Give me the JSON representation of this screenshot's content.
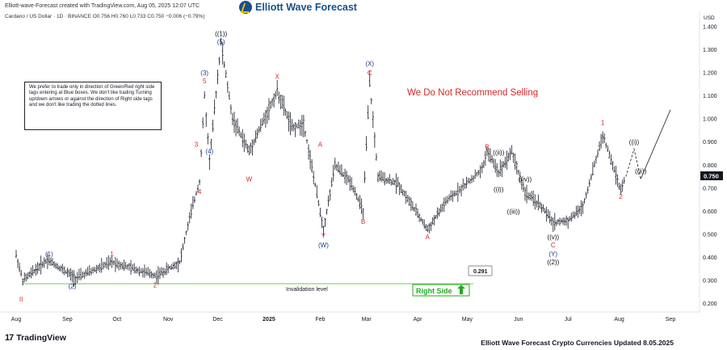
{
  "header": {
    "creator_line": "Elliott-wave-Forecast created with TradingView.com, Aug 05, 2025 12:07 UTC",
    "symbol_line": "Cardano / US Dollar · 1D · BINANCE  O0.756  H0.760  L0.733  C0.750  −0.006 (−0.79%)"
  },
  "brand": {
    "name": "Elliott Wave Forecast",
    "color": "#1a4f8c",
    "accent": "#f2c200"
  },
  "note_text": "We prefer to trade only in direction of Green/Red right side tags entering at Blue boxes. We don't like trading Turning up/down arrows or against the direction of Right side tags and we don't like trading the dotted lines.",
  "headline": {
    "text": "We Do Not Recommend Selling",
    "color": "#d62828"
  },
  "invalidation": {
    "label": "Invalidation level",
    "value": "0.291",
    "color": "#8bd86b"
  },
  "right_side": {
    "label": "Right Side",
    "color": "#22aa22"
  },
  "footer": {
    "tv_brand": "TradingView",
    "title": "Elliott Wave Forecast Crypto Currencies Updated 8.05.2025"
  },
  "chart_data": {
    "type": "candlestick",
    "currency": "USD",
    "last_price": "0.750",
    "ylim": [
      0.18,
      1.42
    ],
    "y_ticks": [
      "1.400",
      "1.300",
      "1.200",
      "1.100",
      "1.000",
      "0.900",
      "0.800",
      "0.700",
      "0.600",
      "0.500",
      "0.400",
      "0.300",
      "0.200"
    ],
    "x_ticks": [
      "Aug",
      "Sep",
      "Oct",
      "Nov",
      "Dec",
      "2025",
      "Feb",
      "Mar",
      "Apr",
      "May",
      "Jun",
      "Jul",
      "Aug",
      "Sep"
    ],
    "price_path": [
      [
        "2024-08-01",
        0.41
      ],
      [
        "2024-08-05",
        0.3
      ],
      [
        "2024-08-20",
        0.39
      ],
      [
        "2024-09-06",
        0.31
      ],
      [
        "2024-09-28",
        0.38
      ],
      [
        "2024-10-25",
        0.32
      ],
      [
        "2024-11-08",
        0.38
      ],
      [
        "2024-11-15",
        0.6
      ],
      [
        "2024-11-20",
        0.73
      ],
      [
        "2024-11-23",
        1.1
      ],
      [
        "2024-11-26",
        0.82
      ],
      [
        "2024-12-03",
        1.33
      ],
      [
        "2024-12-10",
        1.0
      ],
      [
        "2024-12-20",
        0.86
      ],
      [
        "2025-01-06",
        1.12
      ],
      [
        "2025-01-15",
        0.96
      ],
      [
        "2025-01-22",
        0.98
      ],
      [
        "2025-02-03",
        0.52
      ],
      [
        "2025-02-10",
        0.8
      ],
      [
        "2025-02-20",
        0.72
      ],
      [
        "2025-02-27",
        0.6
      ],
      [
        "2025-03-03",
        1.16
      ],
      [
        "2025-03-08",
        0.75
      ],
      [
        "2025-03-20",
        0.72
      ],
      [
        "2025-04-07",
        0.52
      ],
      [
        "2025-04-18",
        0.64
      ],
      [
        "2025-05-10",
        0.78
      ],
      [
        "2025-05-13",
        0.86
      ],
      [
        "2025-05-20",
        0.77
      ],
      [
        "2025-05-28",
        0.86
      ],
      [
        "2025-06-05",
        0.68
      ],
      [
        "2025-06-15",
        0.62
      ],
      [
        "2025-06-22",
        0.55
      ],
      [
        "2025-07-01",
        0.56
      ],
      [
        "2025-07-10",
        0.62
      ],
      [
        "2025-07-17",
        0.8
      ],
      [
        "2025-07-22",
        0.93
      ],
      [
        "2025-07-28",
        0.8
      ],
      [
        "2025-08-02",
        0.69
      ],
      [
        "2025-08-05",
        0.75
      ]
    ],
    "projection": [
      [
        "2025-08-05",
        0.75
      ],
      [
        "2025-08-10",
        0.87
      ],
      [
        "2025-08-14",
        0.74
      ],
      [
        "2025-09-01",
        1.04
      ]
    ],
    "labels": [
      {
        "text": "II",
        "date": "2024-08-04",
        "y": 0.22,
        "color": "#d62828"
      },
      {
        "text": "(1)",
        "date": "2024-08-21",
        "y": 0.415,
        "color": "#1f3a93"
      },
      {
        "text": "(2)",
        "date": "2024-09-04",
        "y": 0.275,
        "color": "#1f3a93"
      },
      {
        "text": "1",
        "date": "2024-09-28",
        "y": 0.415,
        "color": "#d62828"
      },
      {
        "text": "2",
        "date": "2024-10-24",
        "y": 0.28,
        "color": "#d62828"
      },
      {
        "text": "3",
        "date": "2024-11-18",
        "y": 0.89,
        "color": "#d62828"
      },
      {
        "text": "4",
        "date": "2024-11-20",
        "y": 0.685,
        "color": "#d62828"
      },
      {
        "text": "5",
        "date": "2024-11-23",
        "y": 1.165,
        "color": "#d62828"
      },
      {
        "text": "(3)",
        "date": "2024-11-23",
        "y": 1.2,
        "color": "#1f3a93"
      },
      {
        "text": "(4)",
        "date": "2024-11-26",
        "y": 0.86,
        "color": "#1f3a93"
      },
      {
        "text": "((1))",
        "date": "2024-12-03",
        "y": 1.37,
        "color": "#111111"
      },
      {
        "text": "(5)",
        "date": "2024-12-03",
        "y": 1.335,
        "color": "#1f3a93"
      },
      {
        "text": "W",
        "date": "2024-12-20",
        "y": 0.74,
        "color": "#d62828"
      },
      {
        "text": "X",
        "date": "2025-01-06",
        "y": 1.185,
        "color": "#d62828"
      },
      {
        "text": "A",
        "date": "2025-02-01",
        "y": 0.89,
        "color": "#d62828"
      },
      {
        "text": "Y",
        "date": "2025-02-03",
        "y": 0.495,
        "color": "#d62828"
      },
      {
        "text": "(W)",
        "date": "2025-02-03",
        "y": 0.455,
        "color": "#1f3a93"
      },
      {
        "text": "(X)",
        "date": "2025-03-03",
        "y": 1.24,
        "color": "#1f3a93"
      },
      {
        "text": "C",
        "date": "2025-03-03",
        "y": 1.2,
        "color": "#d62828"
      },
      {
        "text": "B",
        "date": "2025-02-27",
        "y": 0.555,
        "color": "#d62828"
      },
      {
        "text": "A",
        "date": "2025-04-07",
        "y": 0.49,
        "color": "#d62828"
      },
      {
        "text": "B",
        "date": "2025-05-13",
        "y": 0.88,
        "color": "#d62828"
      },
      {
        "text": "((ii))",
        "date": "2025-05-20",
        "y": 0.855,
        "color": "#111111"
      },
      {
        "text": "((i))",
        "date": "2025-05-20",
        "y": 0.695,
        "color": "#111111"
      },
      {
        "text": "((iv))",
        "date": "2025-06-05",
        "y": 0.74,
        "color": "#111111"
      },
      {
        "text": "((iii))",
        "date": "2025-05-29",
        "y": 0.6,
        "color": "#111111"
      },
      {
        "text": "((v))",
        "date": "2025-06-22",
        "y": 0.49,
        "color": "#111111"
      },
      {
        "text": "C",
        "date": "2025-06-22",
        "y": 0.455,
        "color": "#d62828"
      },
      {
        "text": "(Y)",
        "date": "2025-06-22",
        "y": 0.415,
        "color": "#1f3a93"
      },
      {
        "text": "((2))",
        "date": "2025-06-22",
        "y": 0.38,
        "color": "#111111"
      },
      {
        "text": "1",
        "date": "2025-07-22",
        "y": 0.985,
        "color": "#d62828"
      },
      {
        "text": "2",
        "date": "2025-08-02",
        "y": 0.665,
        "color": "#d62828"
      },
      {
        "text": "((i))",
        "date": "2025-08-10",
        "y": 0.9,
        "color": "#111111"
      },
      {
        "text": "((ii))",
        "date": "2025-08-14",
        "y": 0.775,
        "color": "#111111"
      }
    ]
  }
}
